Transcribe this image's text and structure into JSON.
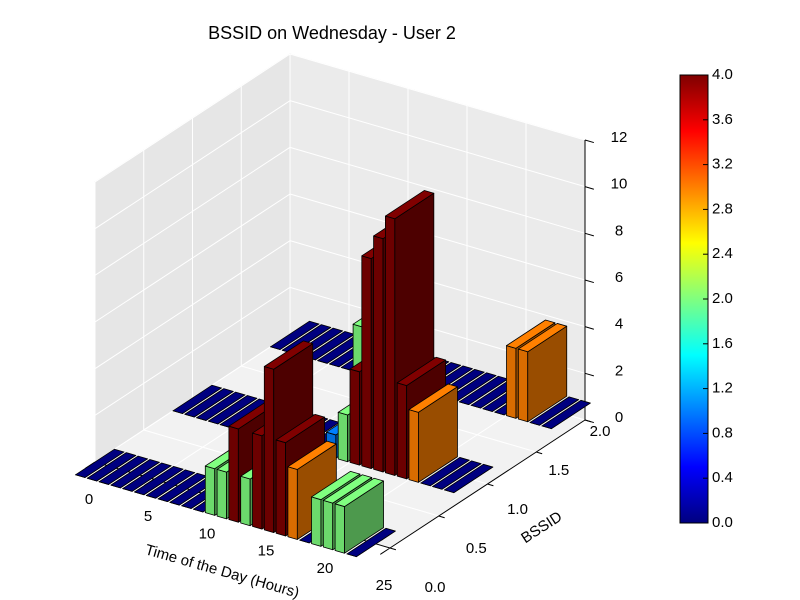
{
  "chart_data": {
    "type": "bar3d",
    "title": "BSSID on Wednesday - User 2",
    "xlabel": "Time of the Day (Hours)",
    "ylabel": "BSSID",
    "x": [
      0,
      1,
      2,
      3,
      4,
      5,
      6,
      7,
      8,
      9,
      10,
      11,
      12,
      13,
      14,
      15,
      16,
      17,
      18,
      19,
      20,
      21,
      22,
      23
    ],
    "series": [
      {
        "bssid": 2,
        "values": [
          0,
          0,
          0,
          0,
          0,
          0,
          0,
          2,
          2,
          2,
          0,
          0,
          0,
          0,
          0,
          0,
          0,
          0,
          0,
          0,
          3,
          3,
          0,
          0
        ]
      },
      {
        "bssid": 1,
        "values": [
          0,
          0,
          0,
          0,
          0,
          0,
          0,
          0,
          0,
          0,
          0,
          0,
          0,
          1,
          2,
          4,
          9,
          10,
          11,
          4,
          3,
          0,
          0,
          0
        ]
      },
      {
        "bssid": 0,
        "values": [
          0,
          0,
          0,
          0,
          0,
          0,
          0,
          0,
          0,
          0,
          0,
          2,
          2,
          4,
          2,
          4,
          7,
          4,
          3,
          0,
          2,
          2,
          2,
          0
        ]
      }
    ],
    "xlim": [
      0,
      25
    ],
    "xticks": [
      0,
      5,
      10,
      15,
      20,
      25
    ],
    "ylim": [
      0,
      2
    ],
    "yticks": [
      {
        "value": 0,
        "label": "0.0"
      },
      {
        "value": 0.5,
        "label": "0.5"
      },
      {
        "value": 1,
        "label": "1.0"
      },
      {
        "value": 1.5,
        "label": "1.5"
      },
      {
        "value": 2,
        "label": "2.0"
      }
    ],
    "zlim": [
      0,
      12
    ],
    "zticks": [
      0,
      2,
      4,
      6,
      8,
      10,
      12
    ],
    "colormap": "jet",
    "clim": [
      0,
      4
    ],
    "cticks": [
      {
        "value": 0,
        "label": "0.0"
      },
      {
        "value": 0.4,
        "label": "0.4"
      },
      {
        "value": 0.8,
        "label": "0.8"
      },
      {
        "value": 1.2,
        "label": "1.2"
      },
      {
        "value": 1.6,
        "label": "1.6"
      },
      {
        "value": 2,
        "label": "2.0"
      },
      {
        "value": 2.4,
        "label": "2.4"
      },
      {
        "value": 2.8,
        "label": "2.8"
      },
      {
        "value": 3.2,
        "label": "3.2"
      },
      {
        "value": 3.6,
        "label": "3.6"
      },
      {
        "value": 4,
        "label": "4.0"
      }
    ],
    "grid": true
  }
}
